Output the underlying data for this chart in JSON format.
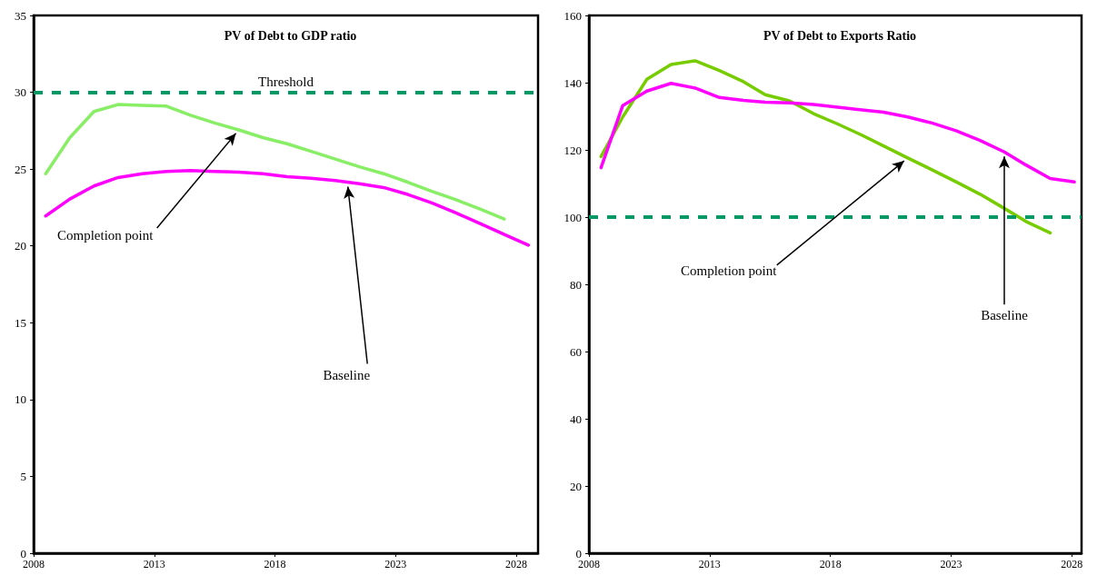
{
  "chart_data": [
    {
      "type": "line",
      "title": "PV of Debt to GDP ratio",
      "xlim": [
        2008,
        2028.9
      ],
      "xticks": [
        2008,
        2013,
        2018,
        2023,
        2028
      ],
      "ylim": [
        0,
        35
      ],
      "yticks": [
        0,
        5,
        10,
        15,
        20,
        25,
        30,
        35
      ],
      "grid": false,
      "marker": "none",
      "line_style": "solid",
      "series": [
        {
          "color": "#88ee66",
          "x": [
            2008.5,
            2009.5,
            2010.5,
            2011.5,
            2012.5,
            2013.5,
            2014.5,
            2015.5,
            2016.5,
            2017.5,
            2018.5,
            2019.5,
            2020.5,
            2021.5,
            2022.5,
            2023.5,
            2024.5,
            2025.5,
            2026.5,
            2027.5
          ],
          "values": [
            24.7,
            27.05,
            28.75,
            29.2,
            29.15,
            29.1,
            28.5,
            28.0,
            27.55,
            27.05,
            26.65,
            26.15,
            25.65,
            25.15,
            24.7,
            24.15,
            23.55,
            23.0,
            22.4,
            21.75
          ]
        },
        {
          "color": "#ff00ff",
          "x": [
            2008.5,
            2009.5,
            2010.5,
            2011.5,
            2012.5,
            2013.5,
            2014.5,
            2015.5,
            2016.5,
            2017.5,
            2018.5,
            2019.5,
            2020.5,
            2021.5,
            2022.5,
            2023.5,
            2024.5,
            2025.5,
            2026.5,
            2027.5,
            2028.5
          ],
          "values": [
            21.95,
            23.05,
            23.9,
            24.45,
            24.7,
            24.85,
            24.9,
            24.85,
            24.8,
            24.7,
            24.5,
            24.4,
            24.25,
            24.05,
            23.8,
            23.35,
            22.8,
            22.15,
            21.45,
            20.75,
            20.05
          ]
        }
      ],
      "ref_lines": [
        {
          "axis": "y",
          "value": 30,
          "label": "Threshold",
          "color": "#009966",
          "line_style": "dashed"
        }
      ],
      "annotations": [
        {
          "text": "Completion point",
          "x": 2016.5,
          "y": 27.55
        },
        {
          "text": "Baseline",
          "x": 2021,
          "y": 24.15
        }
      ]
    },
    {
      "type": "line",
      "title": "PV of Debt to Exports Ratio",
      "xlim": [
        2008,
        2028.4
      ],
      "xticks": [
        2008,
        2013,
        2018,
        2023,
        2028
      ],
      "ylim": [
        0,
        160
      ],
      "yticks": [
        0,
        20,
        40,
        60,
        80,
        100,
        120,
        140,
        160
      ],
      "grid": false,
      "marker": "none",
      "line_style": "solid",
      "series": [
        {
          "color": "#77cc00",
          "x": [
            2008.5,
            2009.4,
            2010.4,
            2011.4,
            2012.4,
            2013.4,
            2014.4,
            2015.3,
            2016.3,
            2017.3,
            2018.3,
            2019.3,
            2020.2,
            2021.2,
            2022.2,
            2023.2,
            2024.2,
            2025.2,
            2026.1,
            2027.1
          ],
          "values": [
            118.0,
            129.8,
            141.0,
            145.4,
            146.5,
            143.6,
            140.3,
            136.4,
            134.6,
            130.8,
            127.7,
            124.4,
            121.2,
            117.6,
            114.1,
            110.5,
            106.8,
            102.6,
            98.7,
            95.3
          ]
        },
        {
          "color": "#ff00ff",
          "x": [
            2008.5,
            2009.4,
            2010.4,
            2011.4,
            2012.4,
            2013.4,
            2014.4,
            2015.3,
            2016.3,
            2017.3,
            2018.3,
            2019.3,
            2020.2,
            2021.2,
            2022.2,
            2023.2,
            2024.2,
            2025.2,
            2026.1,
            2027.1,
            2028.1
          ],
          "values": [
            114.7,
            133.2,
            137.5,
            139.8,
            138.4,
            135.6,
            134.7,
            134.2,
            134.0,
            133.5,
            132.7,
            131.9,
            131.2,
            129.8,
            128.0,
            125.7,
            122.8,
            119.4,
            115.5,
            111.5,
            110.5
          ]
        }
      ],
      "ref_lines": [
        {
          "axis": "y",
          "value": 100,
          "label": null,
          "color": "#009966",
          "line_style": "dashed"
        }
      ],
      "annotations": [
        {
          "text": "Completion point",
          "x": 2021.2,
          "y": 117.6
        },
        {
          "text": "Baseline",
          "x": 2025.2,
          "y": 119.4
        }
      ]
    }
  ]
}
